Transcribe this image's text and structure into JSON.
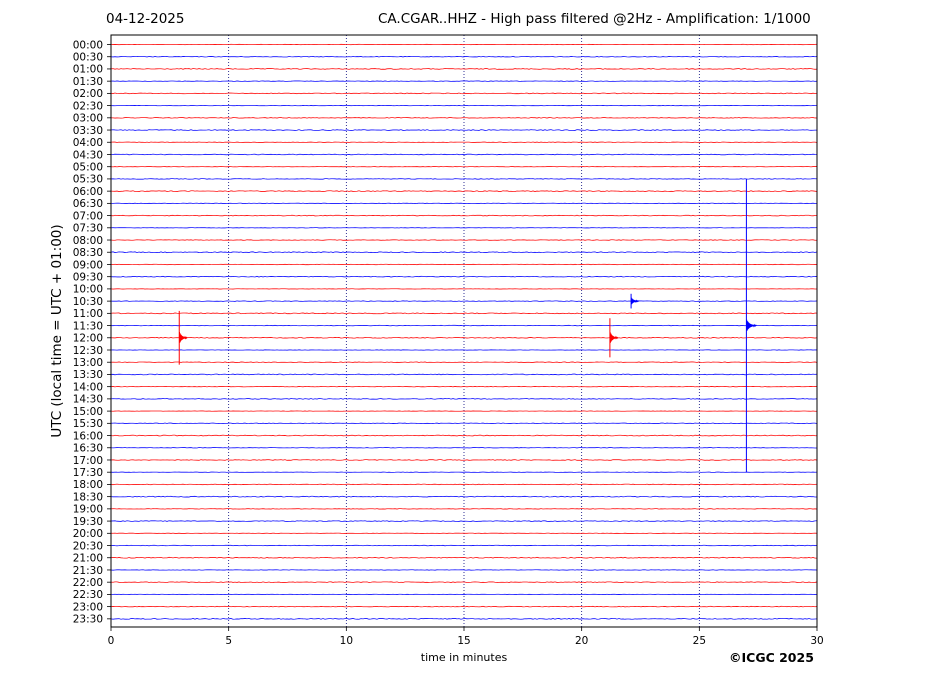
{
  "header": {
    "date": "04-12-2025",
    "title": "CA.CGAR..HHZ - High pass filtered @2Hz - Amplification: 1/1000"
  },
  "footer": {
    "credit": "©ICGC 2025"
  },
  "colors": {
    "trace_even": "#ff0000",
    "trace_odd": "#0000ff",
    "grid": "#00007a"
  },
  "chart_data": {
    "type": "line",
    "title": "CA.CGAR..HHZ - High pass filtered @2Hz - Amplification: 1/1000",
    "xlabel": "time in minutes",
    "ylabel": "UTC (local time = UTC + 01:00)",
    "xlim": [
      0,
      30
    ],
    "x_ticks": [
      "0",
      "5",
      "10",
      "15",
      "20",
      "25",
      "30"
    ],
    "grid": "vertical dotted lines at x ticks",
    "row_labels": [
      "00:00",
      "00:30",
      "01:00",
      "01:30",
      "02:00",
      "02:30",
      "03:00",
      "03:30",
      "04:00",
      "04:30",
      "05:00",
      "05:30",
      "06:00",
      "06:30",
      "07:00",
      "07:30",
      "08:00",
      "08:30",
      "09:00",
      "09:30",
      "10:00",
      "10:30",
      "11:00",
      "11:30",
      "12:00",
      "12:30",
      "13:00",
      "13:30",
      "14:00",
      "14:30",
      "15:00",
      "15:30",
      "16:00",
      "16:30",
      "17:00",
      "17:30",
      "18:00",
      "18:30",
      "19:00",
      "19:30",
      "20:00",
      "20:30",
      "21:00",
      "21:30",
      "22:00",
      "22:30",
      "23:00",
      "23:30"
    ],
    "series_color_pattern": [
      "red",
      "blue"
    ],
    "events": [
      {
        "row": "12:00",
        "minute": 2.9,
        "amplitude_rows": 2.2,
        "color": "red"
      },
      {
        "row": "12:00",
        "minute": 21.2,
        "amplitude_rows": 1.6,
        "color": "red"
      },
      {
        "row": "10:30",
        "minute": 22.1,
        "amplitude_rows": 0.6,
        "color": "blue"
      },
      {
        "row": "11:30",
        "minute": 27.0,
        "amplitude_rows": 12.0,
        "color": "blue"
      }
    ]
  }
}
